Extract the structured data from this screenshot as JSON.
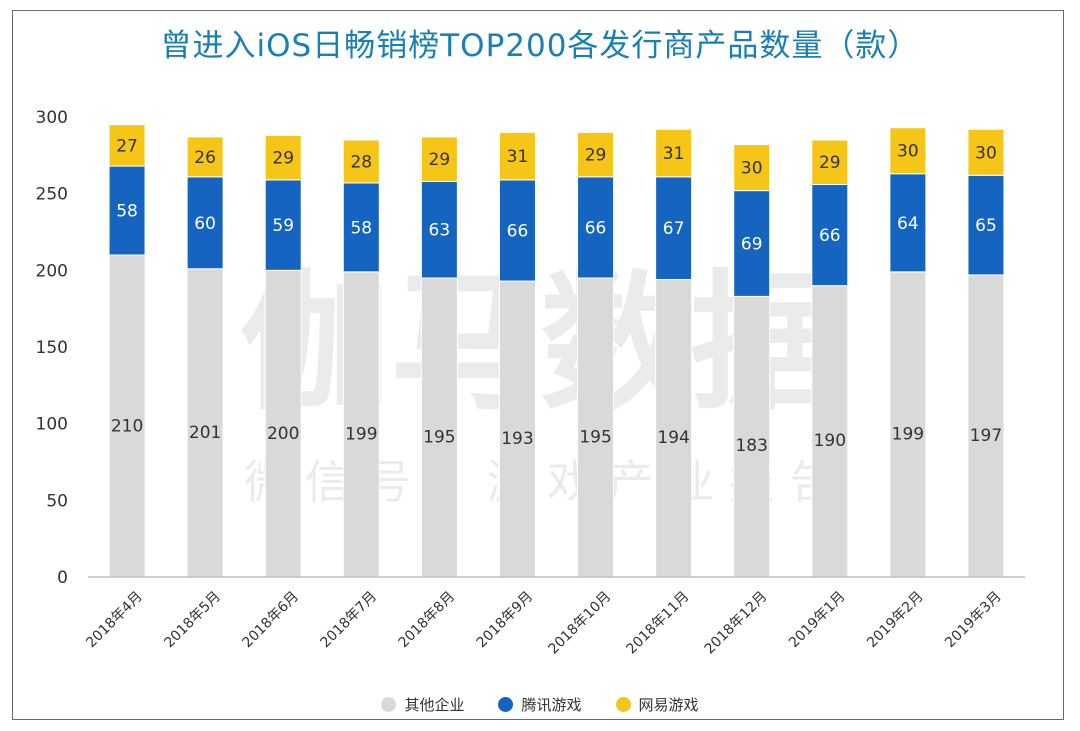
{
  "chart_data": {
    "type": "bar",
    "stacked": true,
    "title": "曾进入iOS日畅销榜TOP200各发行商产品数量（款）",
    "categories": [
      "2018年4月",
      "2018年5月",
      "2018年6月",
      "2018年7月",
      "2018年8月",
      "2018年9月",
      "2018年10月",
      "2018年11月",
      "2018年12月",
      "2019年1月",
      "2019年2月",
      "2019年3月"
    ],
    "series": [
      {
        "name": "其他企业",
        "color": "#d9d9d9",
        "values": [
          210,
          201,
          200,
          199,
          195,
          193,
          195,
          194,
          183,
          190,
          199,
          197
        ]
      },
      {
        "name": "腾讯游戏",
        "color": "#1565c0",
        "values": [
          58,
          60,
          59,
          58,
          63,
          66,
          66,
          67,
          69,
          66,
          64,
          65
        ]
      },
      {
        "name": "网易游戏",
        "color": "#f5c518",
        "values": [
          27,
          26,
          29,
          28,
          29,
          31,
          29,
          31,
          30,
          29,
          30,
          30
        ]
      }
    ],
    "ylim": [
      0,
      300
    ],
    "yticks": [
      0,
      50,
      100,
      150,
      200,
      250,
      300
    ],
    "xlabel": "",
    "ylabel": "",
    "grid": false,
    "legend_position": "bottom",
    "watermark": {
      "main": "伽马数据",
      "sub": "微 信 号 ： 游 戏 产 业 报 告"
    }
  }
}
